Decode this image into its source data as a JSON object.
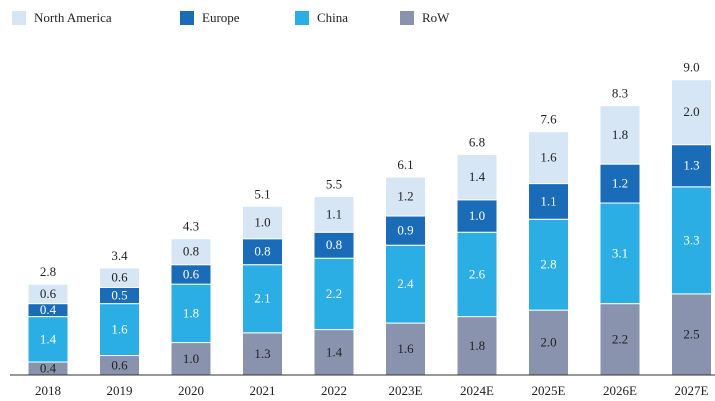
{
  "chart_data": {
    "type": "stacked_bar",
    "categories": [
      "2018",
      "2019",
      "2020",
      "2021",
      "2022",
      "2023E",
      "2024E",
      "2025E",
      "2026E",
      "2027E"
    ],
    "series": [
      {
        "name": "RoW",
        "color": "#8a93ad",
        "values": [
          0.4,
          0.6,
          1.0,
          1.3,
          1.4,
          1.6,
          1.8,
          2.0,
          2.2,
          2.5
        ],
        "value_labels": [
          "0.4",
          "0.6",
          "1.0",
          "1.3",
          "1.4",
          "1.6",
          "1.8",
          "2.0",
          "2.2",
          "2.5"
        ]
      },
      {
        "name": "China",
        "color": "#2aaee4",
        "values": [
          1.4,
          1.6,
          1.8,
          2.1,
          2.2,
          2.4,
          2.6,
          2.8,
          3.1,
          3.3
        ],
        "value_labels": [
          "1.4",
          "1.6",
          "1.8",
          "2.1",
          "2.2",
          "2.4",
          "2.6",
          "2.8",
          "3.1",
          "3.3"
        ]
      },
      {
        "name": "Europe",
        "color": "#1a6bb8",
        "values": [
          0.4,
          0.5,
          0.6,
          0.8,
          0.8,
          0.9,
          1.0,
          1.1,
          1.2,
          1.3
        ],
        "value_labels": [
          "0.4",
          "0.5",
          "0.6",
          "0.8",
          "0.8",
          "0.9",
          "1.0",
          "1.1",
          "1.2",
          "1.3"
        ]
      },
      {
        "name": "North America",
        "color": "#d6e6f4",
        "values": [
          0.6,
          0.6,
          0.8,
          1.0,
          1.1,
          1.2,
          1.4,
          1.6,
          1.8,
          2.0
        ],
        "value_labels": [
          "0.6",
          "0.6",
          "0.8",
          "1.0",
          "1.1",
          "1.2",
          "1.4",
          "1.6",
          "1.8",
          "2.0"
        ]
      }
    ],
    "totals": [
      2.8,
      3.4,
      4.3,
      5.1,
      5.5,
      6.1,
      6.8,
      7.6,
      8.3,
      9.0
    ],
    "totals_labels": [
      "2.8",
      "3.4",
      "4.3",
      "5.1",
      "5.5",
      "6.1",
      "6.8",
      "7.6",
      "8.3",
      "9.0"
    ],
    "legend": "top-left"
  }
}
